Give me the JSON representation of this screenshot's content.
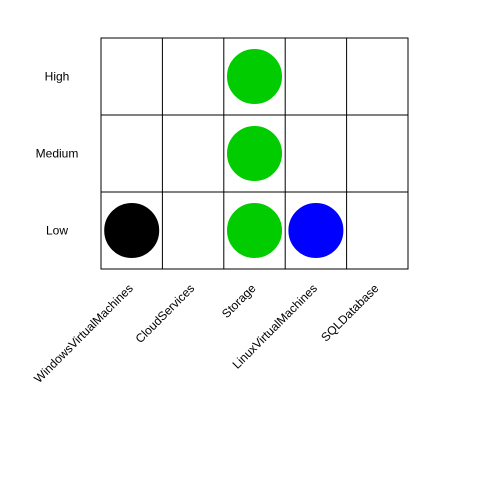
{
  "chart_data": {
    "type": "scatter",
    "title": "",
    "xlabel": "",
    "ylabel": "",
    "grid": true,
    "categories": [
      "WindowsVirtualMachines",
      "CloudServices",
      "Storage",
      "LinuxVirtualMachines",
      "SQLDatabase"
    ],
    "levels": [
      "Low",
      "Medium",
      "High"
    ],
    "points": [
      {
        "x": "WindowsVirtualMachines",
        "y": "Low",
        "color": "#000000"
      },
      {
        "x": "Storage",
        "y": "Low",
        "color": "#00cc00"
      },
      {
        "x": "Storage",
        "y": "Medium",
        "color": "#00cc00"
      },
      {
        "x": "Storage",
        "y": "High",
        "color": "#00cc00"
      },
      {
        "x": "LinuxVirtualMachines",
        "y": "Low",
        "color": "#0000ff"
      }
    ]
  }
}
